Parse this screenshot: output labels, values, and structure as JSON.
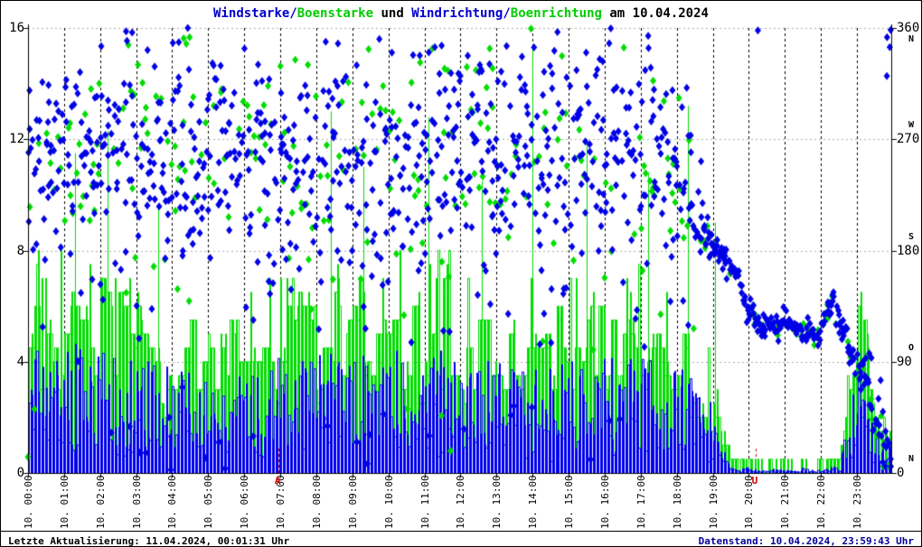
{
  "title": {
    "part_windstarke": "Windstarke/",
    "part_boenstarke": "Boenstarke",
    "part_und": " und ",
    "part_windrichtung": "Windrichtung/",
    "part_boenrichtung": "Boenrichtung",
    "part_datum": " am 10.04.2024"
  },
  "footer": {
    "left": "Letzte Aktualisierung: 11.04.2024, 00:01:31 Uhr",
    "right": "Datenstand: 10.04.2024, 23:59:43 Uhr"
  },
  "colors": {
    "wind_blue": "#0000ee",
    "gust_green": "#00dd00",
    "title_blue": "#0000cc",
    "title_green": "#00cc00",
    "sun_marker_red": "#cc0000",
    "grid_gray": "#aaaaaa",
    "footer_right_blue": "#000099"
  },
  "chart_data": {
    "type": "mixed",
    "title": "Windstarke/Boenstarke und Windrichtung/Boenrichtung am 10.04.2024",
    "resolution_minutes": 15,
    "left_axis": {
      "range": [
        0,
        16
      ],
      "ticks": [
        0,
        4,
        8,
        12,
        16
      ]
    },
    "right_axis": {
      "range": [
        0,
        360
      ],
      "ticks": [
        0,
        90,
        180,
        270,
        360
      ],
      "compass": [
        {
          "deg": 360,
          "label": "N",
          "below": true
        },
        {
          "deg": 270,
          "label": "W",
          "below": false
        },
        {
          "deg": 180,
          "label": "S",
          "below": false
        },
        {
          "deg": 90,
          "label": "O",
          "below": false
        },
        {
          "deg": 0,
          "label": "N",
          "below": false
        }
      ]
    },
    "x_axis": {
      "tick_labels": [
        "10. 00:00",
        "10. 01:00",
        "10. 02:00",
        "10. 03:00",
        "10. 04:00",
        "10. 05:00",
        "10. 06:00",
        "10. 07:00",
        "10. 08:00",
        "10. 09:00",
        "10. 10:00",
        "10. 11:00",
        "10. 12:00",
        "10. 13:00",
        "10. 14:00",
        "10. 15:00",
        "10. 16:00",
        "10. 17:00",
        "10. 18:00",
        "10. 19:00",
        "10. 20:00",
        "10. 21:00",
        "10. 22:00",
        "10. 23:00"
      ]
    },
    "series": [
      {
        "name": "Windstarke",
        "type": "impulse-step",
        "axis": "left",
        "color": "#0000ee",
        "values": [
          4.3,
          4.6,
          4.4,
          4.7,
          4.5,
          4.8,
          4.6,
          4.4,
          4.6,
          4.3,
          4.1,
          4.4,
          4.2,
          4.0,
          4.3,
          4.1,
          3.9,
          3.7,
          3.6,
          3.4,
          3.2,
          3.1,
          3.3,
          3.5,
          3.6,
          3.8,
          4.0,
          4.1,
          4.2,
          4.1,
          4.0,
          4.3,
          4.5,
          4.4,
          4.2,
          4.5,
          4.6,
          4.4,
          4.3,
          4.2,
          4.3,
          4.5,
          4.4,
          4.2,
          4.1,
          4.3,
          4.5,
          4.3,
          4.2,
          4.0,
          4.2,
          4.4,
          4.3,
          4.1,
          4.2,
          4.0,
          4.2,
          4.4,
          4.1,
          4.0,
          4.1,
          4.0,
          3.9,
          4.1,
          4.2,
          4.1,
          4.0,
          4.2,
          4.3,
          4.1,
          3.9,
          3.8,
          4.0,
          3.7,
          3.4,
          3.0,
          2.4,
          1.0,
          0.3,
          0.2,
          0.2,
          0.1,
          0.1,
          0.2,
          0.1,
          0.1,
          0.2,
          0.1,
          0.1,
          0.2,
          0.4,
          2.2,
          4.0,
          3.6,
          1.5,
          1.0
        ]
      },
      {
        "name": "Boenstarke",
        "type": "impulse-step",
        "axis": "left",
        "color": "#00dd00",
        "values": [
          6.8,
          7.2,
          6.9,
          7.4,
          7.0,
          7.5,
          7.2,
          6.9,
          7.3,
          6.8,
          6.5,
          6.9,
          6.6,
          6.3,
          6.7,
          6.4,
          6.1,
          5.8,
          5.6,
          5.3,
          5.0,
          4.8,
          5.1,
          5.4,
          5.6,
          5.9,
          6.2,
          6.4,
          6.5,
          6.4,
          6.3,
          6.7,
          7.0,
          6.9,
          6.6,
          7.0,
          7.2,
          6.9,
          6.7,
          6.6,
          6.7,
          7.0,
          6.9,
          6.6,
          6.4,
          6.7,
          7.0,
          6.7,
          6.6,
          6.3,
          6.6,
          6.9,
          6.7,
          6.4,
          6.6,
          6.3,
          6.6,
          6.9,
          6.4,
          6.3,
          6.4,
          6.3,
          6.1,
          6.4,
          6.6,
          6.4,
          6.3,
          6.6,
          6.7,
          6.4,
          6.1,
          6.0,
          6.3,
          5.8,
          5.3,
          4.7,
          3.8,
          1.6,
          0.5,
          0.3,
          0.3,
          0.2,
          0.2,
          0.3,
          0.2,
          0.2,
          0.3,
          0.2,
          0.2,
          0.3,
          0.7,
          3.2,
          5.8,
          5.2,
          2.2,
          1.6
        ],
        "spikes": [
          {
            "t": 1.3,
            "v": 11.5
          },
          {
            "t": 2.2,
            "v": 12.3
          },
          {
            "t": 3.6,
            "v": 9.5
          },
          {
            "t": 8.4,
            "v": 13.0
          },
          {
            "t": 9.3,
            "v": 11.0
          },
          {
            "t": 11.1,
            "v": 12.8
          },
          {
            "t": 12.6,
            "v": 10.5
          },
          {
            "t": 14.0,
            "v": 15.3
          },
          {
            "t": 15.5,
            "v": 12.0
          },
          {
            "t": 17.2,
            "v": 10.8
          },
          {
            "t": 18.3,
            "v": 13.2
          },
          {
            "t": 19.05,
            "v": 9.0
          }
        ]
      },
      {
        "name": "Windrichtung",
        "type": "scatter",
        "marker": "diamond",
        "axis": "right",
        "color": "#0000e6",
        "centers": [
          260,
          250,
          268,
          245,
          272,
          255,
          240,
          262,
          275,
          248,
          258,
          270,
          244,
          252,
          266,
          238,
          260,
          274,
          250,
          242,
          256,
          268,
          240,
          252,
          275,
          262,
          246,
          258,
          270,
          250,
          238,
          264,
          272,
          248,
          256,
          268,
          242,
          254,
          266,
          250,
          262,
          246,
          270,
          254,
          240,
          266,
          250,
          274,
          258,
          244,
          260,
          272,
          248,
          236,
          264,
          252,
          268,
          242,
          256,
          270,
          246,
          258,
          272,
          250,
          240,
          262,
          274,
          252,
          244,
          266,
          254,
          238,
          248,
          230,
          215,
          195,
          185,
          176,
          166,
          156,
          127,
          120,
          122,
          118,
          121,
          118,
          114,
          112,
          116,
          137,
          124,
          104,
          86,
          70,
          45,
          5
        ],
        "spread": [
          95,
          95,
          95,
          95,
          95,
          95,
          95,
          95,
          95,
          95,
          95,
          95,
          95,
          95,
          95,
          95,
          95,
          95,
          95,
          95,
          95,
          95,
          95,
          95,
          95,
          95,
          95,
          95,
          95,
          95,
          95,
          95,
          95,
          95,
          95,
          95,
          95,
          95,
          95,
          95,
          95,
          95,
          95,
          95,
          95,
          95,
          95,
          95,
          95,
          95,
          95,
          95,
          95,
          95,
          95,
          95,
          95,
          95,
          95,
          95,
          95,
          95,
          95,
          95,
          95,
          95,
          95,
          95,
          95,
          95,
          95,
          95,
          95,
          95,
          60,
          30,
          12,
          9,
          8,
          8,
          10,
          8,
          8,
          8,
          8,
          8,
          8,
          8,
          10,
          12,
          10,
          12,
          14,
          18,
          28,
          45
        ],
        "extra_points": [
          {
            "t": 20.25,
            "deg": 358
          }
        ]
      },
      {
        "name": "Boenrichtung",
        "type": "scatter",
        "marker": "diamond",
        "axis": "right",
        "color": "#00dd00",
        "centers": [
          260,
          250,
          268,
          245,
          272,
          255,
          240,
          262,
          275,
          248,
          258,
          270,
          244,
          252,
          266,
          238,
          260,
          274,
          250,
          242,
          256,
          268,
          240,
          252,
          275,
          262,
          246,
          258,
          270,
          250,
          238,
          264,
          272,
          248,
          256,
          268,
          242,
          254,
          266,
          250,
          262,
          246,
          270,
          254,
          240,
          266,
          250,
          274,
          258,
          244,
          260,
          272,
          248,
          236,
          264,
          252,
          268,
          242,
          256,
          270,
          246,
          258,
          272,
          250,
          240,
          262,
          274,
          252,
          244,
          266,
          254,
          238,
          248,
          230,
          215,
          195,
          185,
          176,
          166,
          156,
          127,
          120,
          122,
          118,
          121,
          118,
          114,
          112,
          116,
          137,
          124,
          104,
          86,
          70,
          45,
          5
        ],
        "spread": [
          95,
          95,
          95,
          95,
          95,
          95,
          95,
          95,
          95,
          95,
          95,
          95,
          95,
          95,
          95,
          95,
          95,
          95,
          95,
          95,
          95,
          95,
          95,
          95,
          95,
          95,
          95,
          95,
          95,
          95,
          95,
          95,
          95,
          95,
          95,
          95,
          95,
          95,
          95,
          95,
          95,
          95,
          95,
          95,
          95,
          95,
          95,
          95,
          95,
          95,
          95,
          95,
          95,
          95,
          95,
          95,
          95,
          95,
          95,
          95,
          95,
          95,
          95,
          95,
          95,
          95,
          95,
          95,
          95,
          95,
          95,
          95,
          95,
          95,
          60,
          30,
          12,
          9,
          8,
          8,
          10,
          8,
          8,
          8,
          8,
          8,
          8,
          8,
          10,
          12,
          10,
          12,
          14,
          18,
          28,
          45
        ]
      }
    ],
    "annotations": [
      {
        "text": "A",
        "hour": 6.94,
        "color": "#cc0000"
      },
      {
        "text": "U",
        "hour": 20.18,
        "color": "#cc0000"
      }
    ]
  }
}
